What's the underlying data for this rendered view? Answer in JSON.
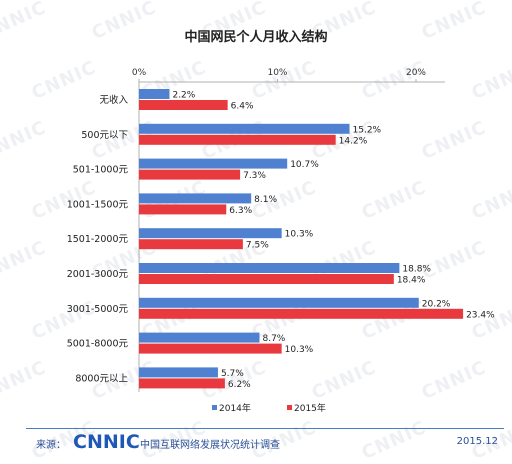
{
  "header": {
    "title": "中国网民个人月收入结构"
  },
  "chart_data": {
    "type": "bar",
    "orientation": "horizontal",
    "title": "中国网民个人月收入结构",
    "categories": [
      "无收入",
      "500元以下",
      "501-1000元",
      "1001-1500元",
      "1501-2000元",
      "2001-3000元",
      "3001-5000元",
      "5001-8000元",
      "8000元以上"
    ],
    "series": [
      {
        "name": "2014年",
        "color": "#4f81d0",
        "values": [
          2.2,
          15.2,
          10.7,
          8.1,
          10.3,
          18.8,
          20.2,
          8.7,
          5.7
        ],
        "labels": [
          "2.2%",
          "15.2%",
          "10.7%",
          "8.1%",
          "10.3%",
          "18.8%",
          "20.2%",
          "8.7%",
          "5.7%"
        ]
      },
      {
        "name": "2015年",
        "color": "#e8393f",
        "values": [
          6.4,
          14.2,
          7.3,
          6.3,
          7.5,
          18.4,
          23.4,
          10.3,
          6.2
        ],
        "labels": [
          "6.4%",
          "14.2%",
          "7.3%",
          "6.3%",
          "7.5%",
          "18.4%",
          "23.4%",
          "10.3%",
          "6.2%"
        ]
      }
    ],
    "xlim": [
      0,
      25
    ],
    "xticks": [
      0,
      10,
      20
    ],
    "xtick_labels": [
      "0%",
      "10%",
      "20%"
    ],
    "axis_position": "top",
    "grid": false,
    "legend_position": "bottom-center"
  },
  "footer": {
    "source_label": "来源：",
    "logo_text": "CNNIC",
    "source_text": "中国互联网络发展状况统计调查",
    "date": "2015.12"
  },
  "watermark": {
    "text": "CNNIC"
  }
}
